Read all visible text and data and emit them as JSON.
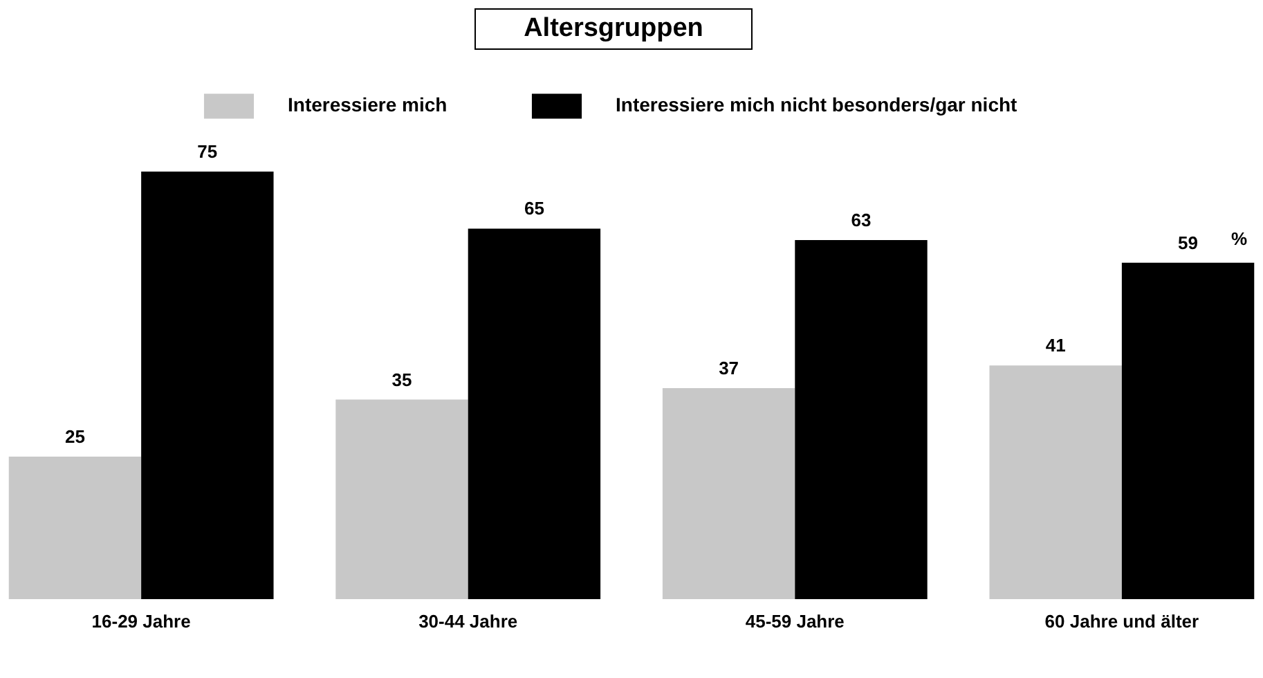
{
  "chart_data": {
    "type": "bar",
    "title": "Altersgruppen",
    "categories": [
      "16-29 Jahre",
      "30-44 Jahre",
      "45-59 Jahre",
      "60 Jahre und älter"
    ],
    "series": [
      {
        "name": "Interessiere mich",
        "color": "#c8c8c8",
        "values": [
          25,
          35,
          37,
          41
        ]
      },
      {
        "name": "Interessiere mich nicht besonders/gar nicht",
        "color": "#000000",
        "values": [
          75,
          65,
          63,
          59
        ]
      }
    ],
    "data_labels": true,
    "legend": "top",
    "tick_labels": "x",
    "annotations": [
      "%"
    ]
  }
}
